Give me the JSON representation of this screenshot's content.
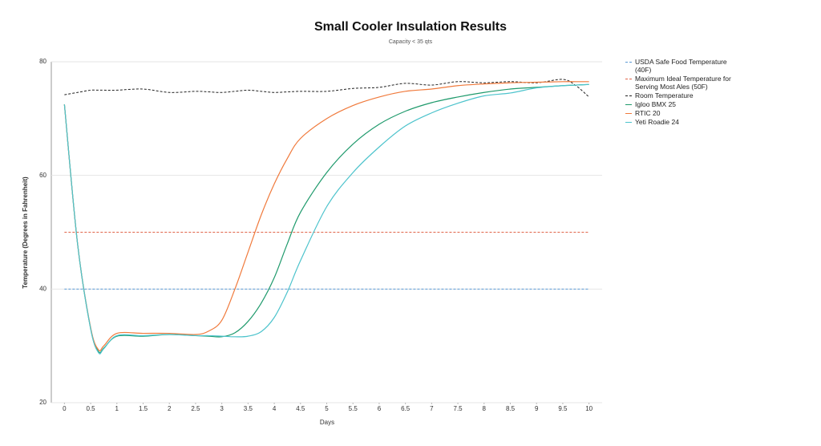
{
  "chart_data": {
    "type": "line",
    "title": "Small Cooler Insulation Results",
    "subtitle": "Capacity < 35 qts",
    "x_label": "Days",
    "y_label": "Temperature (Degrees in Fahrenheit)",
    "x": [
      0,
      0.25,
      0.5,
      0.65,
      0.75,
      1,
      1.5,
      2,
      2.5,
      2.75,
      3,
      3.25,
      3.5,
      3.75,
      4,
      4.25,
      4.5,
      5,
      5.5,
      6,
      6.5,
      7,
      7.5,
      8,
      8.5,
      9,
      9.5,
      9.75,
      10
    ],
    "series": [
      {
        "name": "USDA Safe Food Temperature (40F)",
        "color": "#5b9bd5",
        "dashed": true,
        "x": [
          0,
          10
        ],
        "values": [
          40,
          40
        ]
      },
      {
        "name": "Maximum Ideal Temperature for Serving Most Ales (50F)",
        "color": "#e0644a",
        "dashed": true,
        "x": [
          0,
          10
        ],
        "values": [
          50,
          50
        ]
      },
      {
        "name": "Room Temperature",
        "color": "#222222",
        "dashed": true,
        "values": [
          74.2,
          74.6,
          75,
          75,
          75,
          75,
          75.2,
          74.6,
          74.8,
          74.7,
          74.6,
          74.8,
          75,
          74.8,
          74.6,
          74.7,
          74.8,
          74.8,
          75.3,
          75.5,
          76.2,
          75.9,
          76.5,
          76.3,
          76.5,
          76.3,
          76.9,
          75.8,
          73.8
        ]
      },
      {
        "name": "Igloo BMX 25",
        "color": "#1f9a6c",
        "dashed": false,
        "values": [
          72.5,
          48,
          33,
          29,
          29.6,
          31.7,
          31.7,
          32,
          31.8,
          31.7,
          31.6,
          32.3,
          34.3,
          37.5,
          42,
          48,
          53.5,
          60.5,
          65.5,
          69,
          71.3,
          72.8,
          73.8,
          74.6,
          75.2,
          75.5,
          75.8,
          75.9,
          76
        ]
      },
      {
        "name": "RTIC 20",
        "color": "#f07a3c",
        "dashed": false,
        "values": [
          72.5,
          48,
          33.2,
          29.3,
          30,
          32.2,
          32.2,
          32.2,
          32,
          32.6,
          34.5,
          40,
          46.5,
          53,
          58.5,
          63,
          66.5,
          70,
          72.3,
          73.8,
          74.8,
          75.2,
          75.8,
          76.1,
          76.3,
          76.4,
          76.5,
          76.5,
          76.5
        ]
      },
      {
        "name": "Yeti Roadie 24",
        "color": "#4cc3cc",
        "dashed": false,
        "values": [
          72.5,
          48,
          33,
          28.8,
          29.5,
          31.8,
          31.8,
          32,
          31.8,
          31.8,
          31.7,
          31.6,
          31.7,
          32.5,
          35,
          39.5,
          45,
          54.5,
          60.5,
          65,
          68.7,
          71,
          72.7,
          74,
          74.5,
          75.4,
          75.8,
          75.9,
          76
        ]
      }
    ],
    "xlim": [
      -0.25,
      10.25
    ],
    "ylim": [
      20,
      80
    ],
    "xticks": [
      0,
      0.5,
      1,
      1.5,
      2,
      2.5,
      3,
      3.5,
      4,
      4.5,
      5,
      5.5,
      6,
      6.5,
      7,
      7.5,
      8,
      8.5,
      9,
      9.5,
      10
    ],
    "yticks": [
      20,
      40,
      60,
      80
    ],
    "grid": true,
    "legend": "right"
  }
}
